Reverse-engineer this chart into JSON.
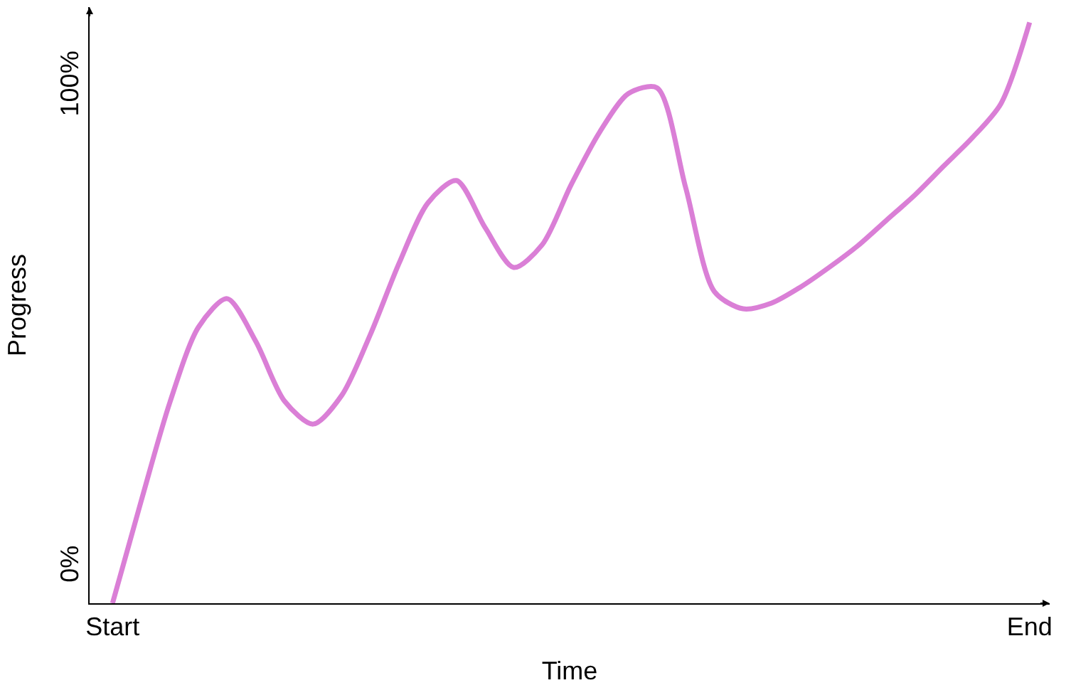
{
  "chart_data": {
    "type": "line",
    "xlabel": "Time",
    "ylabel": "Progress",
    "categories": [
      "Start",
      null,
      null,
      null,
      null,
      null,
      null,
      null,
      null,
      null,
      null,
      null,
      null,
      null,
      null,
      null,
      null,
      null,
      null,
      null,
      null,
      null,
      null,
      null,
      null,
      null,
      null,
      null,
      null,
      null,
      null,
      null,
      "End"
    ],
    "series": [
      {
        "color": "#da7fd6",
        "values": [
          -7.4,
          13.9,
          34.4,
          50.1,
          56.0,
          47.1,
          34.7,
          29.9,
          35.9,
          48.6,
          63.4,
          75.9,
          80.6,
          70.8,
          62.5,
          67.3,
          79.7,
          90.7,
          98.7,
          99.9,
          79.1,
          57.5,
          53.9,
          55.1,
          58.4,
          62.5,
          67.0,
          72.3,
          77.6,
          83.6,
          89.5,
          96.6,
          113.5
        ]
      }
    ],
    "ylim": [
      -7.4,
      116.7
    ],
    "yticks": [
      {
        "value": 0,
        "label": "0%"
      },
      {
        "value": 100,
        "label": "100%"
      }
    ],
    "grid": false,
    "marker": "none",
    "line_style": "solid"
  }
}
